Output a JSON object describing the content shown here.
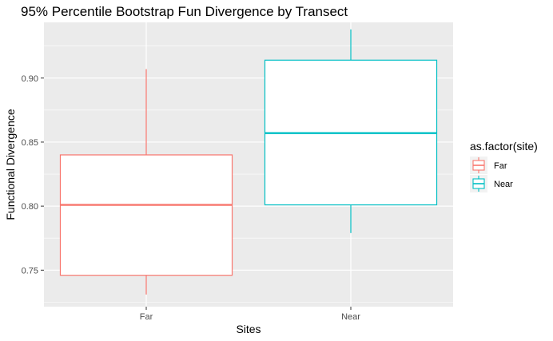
{
  "chart_data": {
    "type": "boxplot",
    "title": "95% Percentile Bootstrap Fun Divergence by Transect",
    "xlabel": "Sites",
    "ylabel": "Functional Divergence",
    "categories": [
      "Far",
      "Near"
    ],
    "ylim": [
      0.7215,
      0.9435
    ],
    "yticks": [
      0.75,
      0.8,
      0.85,
      0.9
    ],
    "ytick_labels": [
      "0.75",
      "0.80",
      "0.85",
      "0.90"
    ],
    "boxes": [
      {
        "name": "Far",
        "min": 0.731,
        "q1": 0.746,
        "median": 0.801,
        "q3": 0.84,
        "max": 0.907,
        "color": "#F8766D"
      },
      {
        "name": "Near",
        "min": 0.779,
        "q1": 0.801,
        "median": 0.857,
        "q3": 0.914,
        "max": 0.938,
        "color": "#00BFC4"
      }
    ],
    "legend": {
      "title": "as.factor(site)",
      "position": "right",
      "items": [
        {
          "label": "Far",
          "color": "#F8766D"
        },
        {
          "label": "Near",
          "color": "#00BFC4"
        }
      ]
    },
    "grid": true,
    "panel_background": "#EBEBEB",
    "grid_color": "#FFFFFF"
  }
}
